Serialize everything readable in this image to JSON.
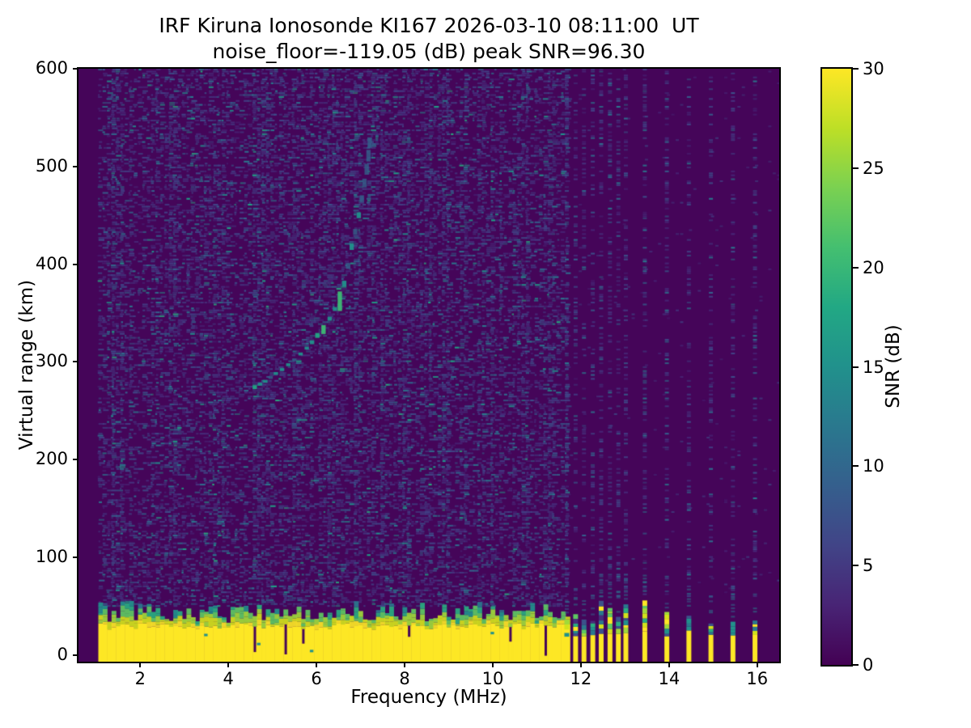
{
  "chart_data": {
    "type": "heatmap",
    "title": "IRF Kiruna Ionosonde KI167 2026-03-10 08:11:00  UT",
    "subtitle": "noise_floor=-119.05 (dB) peak SNR=96.30",
    "station": "KI167",
    "timestamp": "2026-03-10 08:11:00 UT",
    "noise_floor_db": -119.05,
    "peak_snr_db": 96.3,
    "xlabel": "Frequency (MHz)",
    "ylabel": "Virtual range (km)",
    "colorbar_label": "SNR (dB)",
    "xlim": [
      0.6,
      16.5
    ],
    "ylim": [
      -7,
      600
    ],
    "clim": [
      0,
      30
    ],
    "xticks": [
      2,
      4,
      6,
      8,
      10,
      12,
      14,
      16
    ],
    "yticks": [
      0,
      100,
      200,
      300,
      400,
      500,
      600
    ],
    "colorbar_ticks": [
      0,
      5,
      10,
      15,
      20,
      25,
      30
    ],
    "grid": false,
    "legend": "none",
    "bin_mhz": 0.1,
    "freq_start": 1.05,
    "sweep_end": 11.65,
    "freq_end": 16.45,
    "pulsed_freqs_dense": [
      11.68,
      11.88,
      12.07,
      12.27,
      12.46,
      12.66,
      12.85,
      13.02
    ],
    "pulsed_freqs_sparse": [
      13.45,
      13.95,
      14.45,
      14.95,
      15.45,
      15.95
    ],
    "clutter": {
      "solid_top_km": 29,
      "ragged_top_km": 50,
      "pulsed_yellow_top_km": 19
    },
    "trace_points": [
      [
        4.6,
        274,
        0.85,
        4
      ],
      [
        4.72,
        277,
        0.6,
        3
      ],
      [
        4.84,
        280,
        0.75,
        3
      ],
      [
        4.96,
        284,
        0.55,
        3
      ],
      [
        5.08,
        288,
        0.7,
        3
      ],
      [
        5.22,
        292,
        0.6,
        3
      ],
      [
        5.36,
        297,
        0.7,
        3
      ],
      [
        5.5,
        302,
        0.55,
        3
      ],
      [
        5.64,
        308,
        0.65,
        3
      ],
      [
        5.78,
        314,
        0.6,
        3
      ],
      [
        5.9,
        320,
        0.7,
        4
      ],
      [
        6.02,
        327,
        0.8,
        5
      ],
      [
        6.16,
        333,
        1.0,
        9
      ],
      [
        6.3,
        344,
        0.6,
        4
      ],
      [
        6.42,
        354,
        0.65,
        4
      ],
      [
        6.53,
        362,
        1.0,
        20
      ],
      [
        6.63,
        380,
        0.6,
        6
      ],
      [
        6.72,
        398,
        0.55,
        6
      ],
      [
        6.8,
        418,
        0.75,
        7
      ],
      [
        6.88,
        433,
        0.5,
        6
      ],
      [
        6.96,
        450,
        0.6,
        6
      ],
      [
        7.03,
        467,
        0.5,
        7
      ],
      [
        7.09,
        483,
        0.5,
        9
      ],
      [
        7.14,
        497,
        0.5,
        11
      ],
      [
        7.18,
        511,
        0.45,
        12
      ],
      [
        7.21,
        524,
        0.4,
        10
      ]
    ],
    "colormap": "viridis",
    "colormap_stops": [
      [
        0.0,
        "#440154"
      ],
      [
        0.1,
        "#482475"
      ],
      [
        0.2,
        "#414487"
      ],
      [
        0.3,
        "#355f8d"
      ],
      [
        0.4,
        "#2a788e"
      ],
      [
        0.5,
        "#21918c"
      ],
      [
        0.6,
        "#22a884"
      ],
      [
        0.7,
        "#44bf70"
      ],
      [
        0.8,
        "#7ad151"
      ],
      [
        0.9,
        "#bddf26"
      ],
      [
        1.0,
        "#fde725"
      ]
    ],
    "colors": {
      "background": "#450559",
      "clutter_yellow": "#fde725",
      "noise_dim": [
        "#472a7a",
        "#46327e",
        "#423f85",
        "#414487",
        "#3d4e8a"
      ],
      "noise_mid": [
        "#355f8d",
        "#2f6c8e",
        "#2a788e"
      ],
      "noise_teal": [
        "#21918c",
        "#1fa187"
      ],
      "noise_bright": "#28ae80",
      "trace_faint": "#31688e",
      "trace_mid": "#21918c",
      "trace_strong": "#22a884",
      "trace_bright": "#3dbc74",
      "clutter_stack": [
        "#fde725",
        "#d2e21b",
        "#a0da39",
        "#5ec962",
        "#28ae80",
        "#21918c",
        "#2a788e",
        "#3b528b",
        "#472d7b"
      ]
    }
  }
}
